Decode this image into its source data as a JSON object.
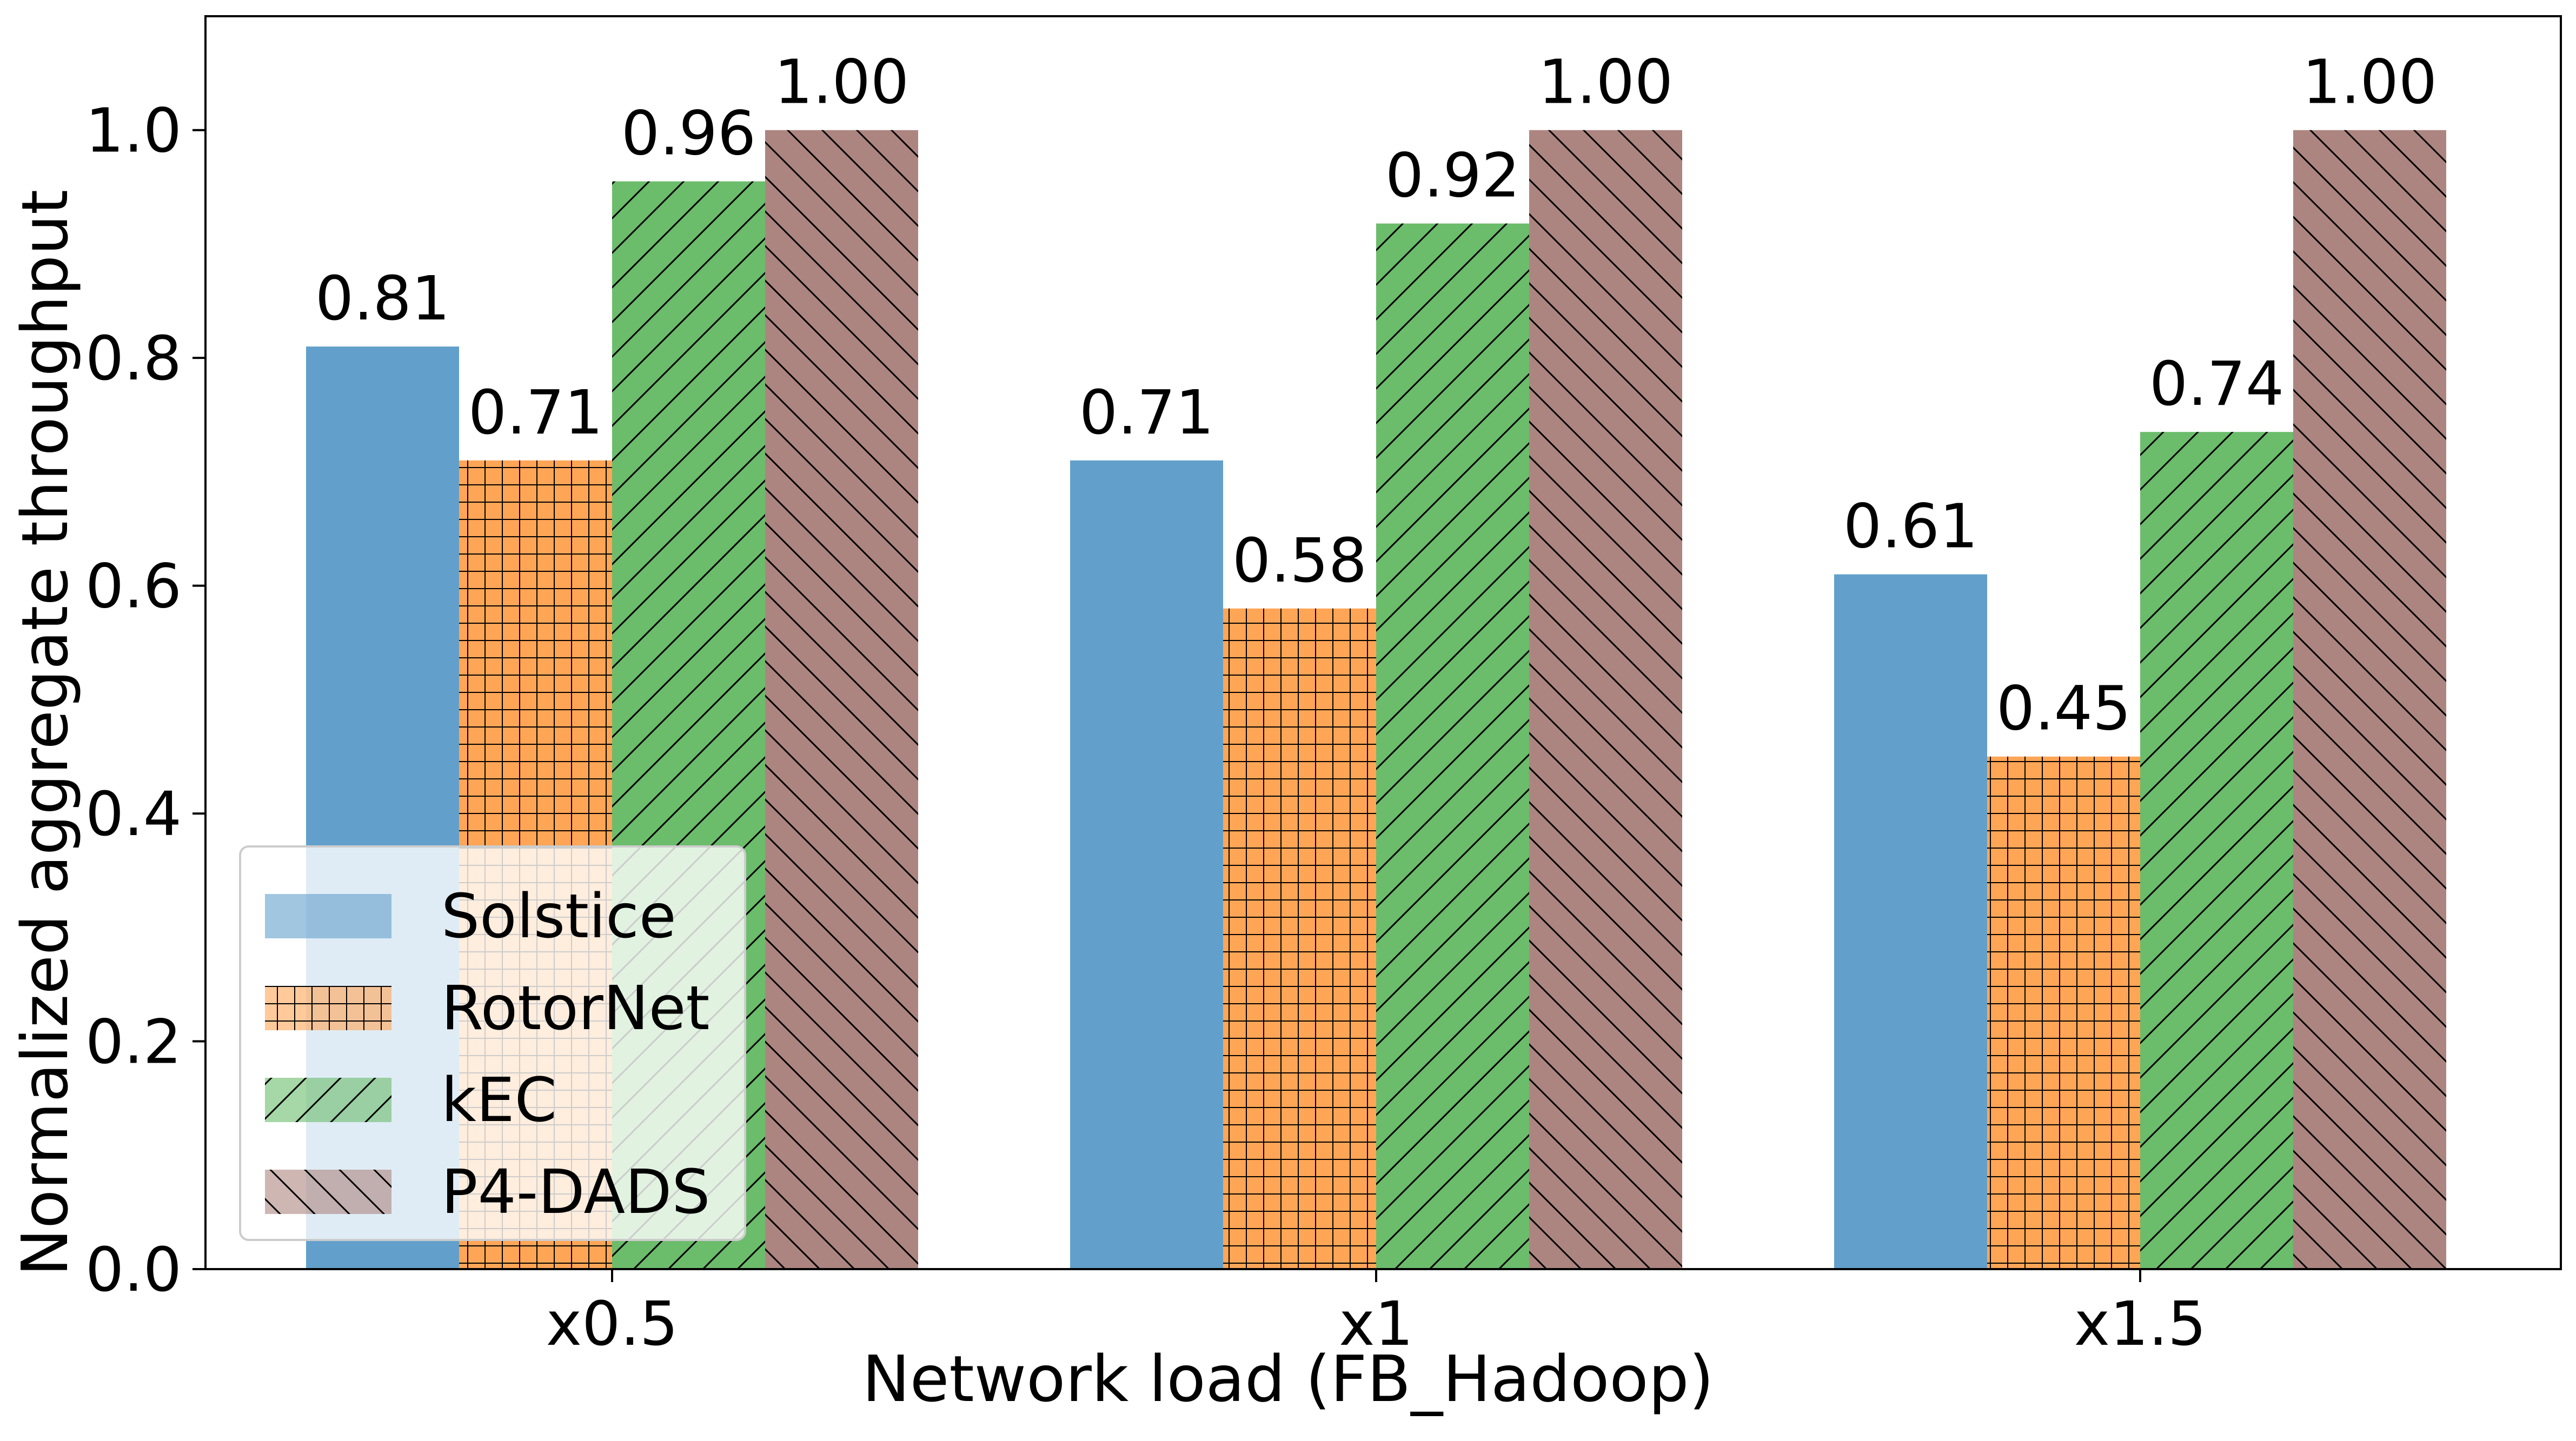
{
  "chart_data": {
    "type": "bar",
    "title": "",
    "xlabel": "Network load (FB_Hadoop)",
    "ylabel": "Normalized aggregate throughput",
    "ylim": [
      0,
      1.1
    ],
    "yticks": [
      "0.0",
      "0.2",
      "0.4",
      "0.6",
      "0.8",
      "1.0"
    ],
    "categories": [
      "x0.5",
      "x1",
      "x1.5"
    ],
    "series": [
      {
        "name": "Solstice",
        "values": [
          0.81,
          0.71,
          0.61
        ],
        "labels": [
          "0.81",
          "0.71",
          "0.61"
        ],
        "color": "#62a0cb",
        "pattern": "none"
      },
      {
        "name": "RotorNet",
        "values": [
          0.71,
          0.58,
          0.45
        ],
        "labels": [
          "0.71",
          "0.58",
          "0.45"
        ],
        "color": "#ffa556",
        "pattern": "grid"
      },
      {
        "name": "kEC",
        "values": [
          0.955,
          0.918,
          0.735
        ],
        "labels": [
          "0.96",
          "0.92",
          "0.74"
        ],
        "color": "#6bbc6b",
        "pattern": "forward-diagonal"
      },
      {
        "name": "P4-DADS",
        "values": [
          1.0,
          1.0,
          1.0
        ],
        "labels": [
          "1.00",
          "1.00",
          "1.00"
        ],
        "color": "#ad8580",
        "pattern": "back-diagonal"
      }
    ],
    "legend_position": "lower-left",
    "grid": false
  }
}
